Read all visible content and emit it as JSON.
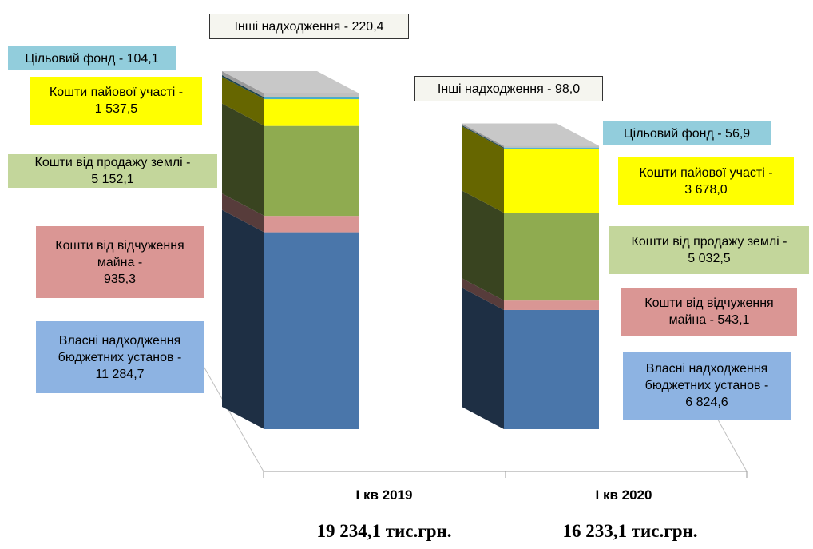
{
  "chart_data": {
    "type": "bar3d_stacked",
    "categories": [
      "І кв 2019",
      "І кв 2020"
    ],
    "series": [
      {
        "color": "#4a76aa",
        "values": [
          11284.7,
          6824.6
        ],
        "value_labels": [
          "Власні надходження\nбюджетних установ -\n11 284,7",
          "Власні надходження\nбюджетних установ -\n6 824,6"
        ]
      },
      {
        "color": "#d99694",
        "values": [
          935.3,
          543.1
        ],
        "value_labels": [
          "Кошти від відчуження\nмайна -\n935,3",
          "Кошти від відчуження\nмайна - 543,1"
        ]
      },
      {
        "color": "#8fab50",
        "values": [
          5152.1,
          5032.5
        ],
        "value_labels": [
          "Кошти від продажу землі -\n5 152,1",
          "Кошти від продажу землі -\n5 032,5"
        ]
      },
      {
        "color": "#ffff00",
        "values": [
          1537.5,
          3678.0
        ],
        "value_labels": [
          "Кошти пайової участі -\n1 537,5",
          "Кошти пайової участі -\n3 678,0"
        ]
      },
      {
        "color": "#4bacc6",
        "values": [
          104.1,
          56.9
        ],
        "value_labels": [
          "Цільовий фонд  - 104,1",
          "Цільовий фонд - 56,9"
        ]
      },
      {
        "color": "#c0c0c0",
        "values": [
          220.4,
          98.0
        ],
        "value_labels": [
          "Інші надходження - 220,4",
          "Інші надходження - 98,0"
        ]
      }
    ],
    "annotations": [
      "19 234,1 тис.грн.",
      "16 233,1 тис.грн."
    ]
  }
}
